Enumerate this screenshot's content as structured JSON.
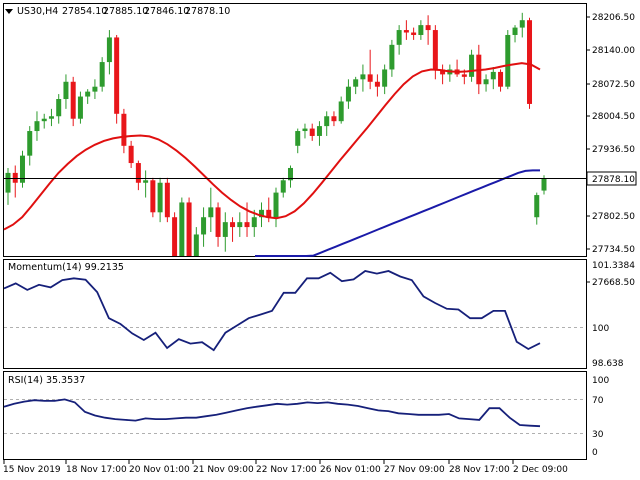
{
  "header": {
    "symbol": "US30,H4",
    "open": "27854.10",
    "high": "27885.10",
    "low": "27846.10",
    "close": "27878.10",
    "marker_icon": "triangle-down-icon"
  },
  "price_axis": {
    "ticks": [
      "28206.50",
      "28140.00",
      "28072.50",
      "28004.50",
      "27936.50",
      "27802.50",
      "27734.50",
      "27668.50"
    ],
    "current_price_label": "27878.10"
  },
  "momentum": {
    "label": "Momentum(14) 99.2135",
    "ticks": [
      "101.3384",
      "100",
      "98.638"
    ],
    "level": 100
  },
  "rsi": {
    "label": "RSI(14) 35.3537",
    "ticks": [
      "100",
      "70",
      "30",
      "0"
    ]
  },
  "time_axis": [
    "15 Nov 2019",
    "18 Nov 17:00",
    "20 Nov 01:00",
    "21 Nov 09:00",
    "22 Nov 17:00",
    "26 Nov 01:00",
    "27 Nov 09:00",
    "28 Nov 17:00",
    "2 Dec 09:00"
  ],
  "colors": {
    "bull": "#2e9b2e",
    "bear": "#e8161a",
    "sma_fast": "#e01010",
    "sma_slow": "#1a1aa8",
    "osc": "#16207a",
    "grid": "#b0b0b0"
  },
  "chart_data": {
    "type": "candlestick",
    "timeframe": "H4",
    "price_range": [
      27655,
      28230
    ],
    "candles": [
      [
        27850,
        27900,
        27825,
        27890
      ],
      [
        27890,
        27905,
        27840,
        27870
      ],
      [
        27870,
        27935,
        27860,
        27925
      ],
      [
        27925,
        27985,
        27905,
        27975
      ],
      [
        27975,
        28015,
        27955,
        27995
      ],
      [
        27995,
        28010,
        27980,
        28000
      ],
      [
        28000,
        28020,
        27985,
        28005
      ],
      [
        28005,
        28050,
        27990,
        28040
      ],
      [
        28040,
        28090,
        28020,
        28075
      ],
      [
        28075,
        28085,
        27985,
        28000
      ],
      [
        28000,
        28055,
        27990,
        28045
      ],
      [
        28045,
        28060,
        28030,
        28055
      ],
      [
        28055,
        28080,
        28040,
        28065
      ],
      [
        28065,
        28125,
        28055,
        28115
      ],
      [
        28115,
        28180,
        28090,
        28165
      ],
      [
        28165,
        28170,
        27990,
        28010
      ],
      [
        28010,
        28020,
        27930,
        27945
      ],
      [
        27945,
        27955,
        27900,
        27910
      ],
      [
        27910,
        27915,
        27855,
        27870
      ],
      [
        27870,
        27895,
        27840,
        27875
      ],
      [
        27875,
        27880,
        27800,
        27810
      ],
      [
        27810,
        27880,
        27790,
        27870
      ],
      [
        27870,
        27880,
        27790,
        27800
      ],
      [
        27800,
        27810,
        27680,
        27720
      ],
      [
        27720,
        27840,
        27700,
        27830
      ],
      [
        27830,
        27840,
        27685,
        27710
      ],
      [
        27710,
        27780,
        27700,
        27765
      ],
      [
        27765,
        27820,
        27740,
        27800
      ],
      [
        27800,
        27860,
        27770,
        27820
      ],
      [
        27820,
        27830,
        27740,
        27760
      ],
      [
        27760,
        27810,
        27730,
        27790
      ],
      [
        27790,
        27800,
        27750,
        27780
      ],
      [
        27780,
        27810,
        27760,
        27790
      ],
      [
        27790,
        27830,
        27760,
        27780
      ],
      [
        27780,
        27815,
        27760,
        27800
      ],
      [
        27800,
        27830,
        27780,
        27815
      ],
      [
        27815,
        27840,
        27790,
        27800
      ],
      [
        27800,
        27860,
        27780,
        27850
      ],
      [
        27850,
        27880,
        27840,
        27875
      ],
      [
        27875,
        27905,
        27860,
        27900
      ],
      [
        27945,
        27980,
        27930,
        27975
      ],
      [
        27975,
        27990,
        27960,
        27980
      ],
      [
        27980,
        27990,
        27955,
        27965
      ],
      [
        27965,
        27995,
        27945,
        27985
      ],
      [
        27985,
        28015,
        27965,
        28005
      ],
      [
        28005,
        28015,
        27985,
        27995
      ],
      [
        27995,
        28045,
        27990,
        28035
      ],
      [
        28035,
        28080,
        28020,
        28065
      ],
      [
        28065,
        28085,
        28050,
        28080
      ],
      [
        28080,
        28110,
        28055,
        28090
      ],
      [
        28090,
        28140,
        28060,
        28075
      ],
      [
        28075,
        28090,
        28045,
        28065
      ],
      [
        28065,
        28110,
        28050,
        28100
      ],
      [
        28100,
        28160,
        28085,
        28150
      ],
      [
        28150,
        28190,
        28130,
        28180
      ],
      [
        28180,
        28200,
        28160,
        28175
      ],
      [
        28175,
        28185,
        28160,
        28170
      ],
      [
        28170,
        28200,
        28160,
        28190
      ],
      [
        28190,
        28210,
        28150,
        28180
      ],
      [
        28180,
        28190,
        28080,
        28100
      ],
      [
        28100,
        28110,
        28070,
        28090
      ],
      [
        28090,
        28110,
        28075,
        28100
      ],
      [
        28100,
        28120,
        28085,
        28090
      ],
      [
        28090,
        28100,
        28070,
        28085
      ],
      [
        28085,
        28140,
        28075,
        28130
      ],
      [
        28130,
        28150,
        28050,
        28070
      ],
      [
        28070,
        28090,
        28055,
        28080
      ],
      [
        28080,
        28105,
        28060,
        28095
      ],
      [
        28095,
        28100,
        28055,
        28065
      ],
      [
        28065,
        28180,
        28060,
        28170
      ],
      [
        28170,
        28190,
        28155,
        28185
      ],
      [
        28185,
        28215,
        28165,
        28200
      ],
      [
        28200,
        28205,
        28020,
        28030
      ],
      [
        27800,
        27850,
        27785,
        27845
      ],
      [
        27854.1,
        27885.1,
        27846.1,
        27878.1
      ]
    ],
    "series": [
      {
        "name": "SMA fast",
        "values": [
          27775,
          27785,
          27800,
          27822,
          27845,
          27868,
          27890,
          27908,
          27924,
          27937,
          27947,
          27955,
          27960,
          27963,
          27965,
          27966,
          27964,
          27958,
          27948,
          27935,
          27920,
          27903,
          27885,
          27867,
          27850,
          27835,
          27822,
          27812,
          27805,
          27800,
          27798,
          27802,
          27812,
          27828,
          27848,
          27870,
          27893,
          27916,
          27938,
          27960,
          27982,
          28005,
          28028,
          28050,
          28070,
          28086,
          28096,
          28100,
          28099,
          28096,
          28095,
          28096,
          28098,
          28100,
          28103,
          28107,
          28110,
          28113,
          28110,
          28100
        ]
      },
      {
        "name": "SMA slow",
        "values": [
          27660,
          27670,
          27680,
          27690,
          27698,
          27704,
          27710,
          27716,
          27722,
          27728,
          27734,
          27740,
          27746,
          27752,
          27758,
          27764,
          27770,
          27776,
          27782,
          27788,
          27794,
          27800,
          27806,
          27812,
          27818,
          27824,
          27830,
          27836,
          27842,
          27848,
          27854,
          27860,
          27866,
          27872,
          27878,
          27884,
          27890,
          27894,
          27895,
          27895
        ]
      },
      {
        "name": "Momentum(14)",
        "values": [
          100.72,
          100.86,
          100.68,
          100.82,
          100.75,
          100.95,
          101.0,
          100.96,
          100.62,
          99.9,
          99.74,
          99.48,
          99.3,
          99.5,
          99.08,
          99.32,
          99.2,
          99.24,
          99.02,
          99.5,
          99.7,
          99.9,
          100.0,
          100.1,
          100.6,
          100.6,
          101.0,
          101.0,
          101.15,
          100.92,
          100.97,
          101.2,
          101.13,
          101.2,
          101.05,
          100.95,
          100.5,
          100.32,
          100.16,
          100.14,
          99.9,
          99.9,
          100.1,
          100.1,
          99.25,
          99.05,
          99.21
        ]
      },
      {
        "name": "RSI(14)",
        "values": [
          62,
          66,
          69,
          71,
          70,
          70,
          72,
          68,
          55,
          50,
          47,
          45,
          44,
          43,
          46,
          45,
          45,
          46,
          47,
          47,
          49,
          51,
          54,
          57,
          60,
          62,
          64,
          66,
          65,
          66,
          68,
          67,
          68,
          66,
          65,
          63,
          60,
          57,
          56,
          53,
          52,
          51,
          51,
          51,
          52,
          46,
          45,
          44,
          60,
          60,
          47,
          37,
          36,
          35.35
        ]
      }
    ],
    "momentum_level": 100,
    "rsi_levels": [
      70,
      30
    ],
    "time_labels": [
      "15 Nov 2019",
      "18 Nov 17:00",
      "20 Nov 01:00",
      "21 Nov 09:00",
      "22 Nov 17:00",
      "26 Nov 01:00",
      "27 Nov 09:00",
      "28 Nov 17:00",
      "2 Dec 09:00"
    ]
  }
}
